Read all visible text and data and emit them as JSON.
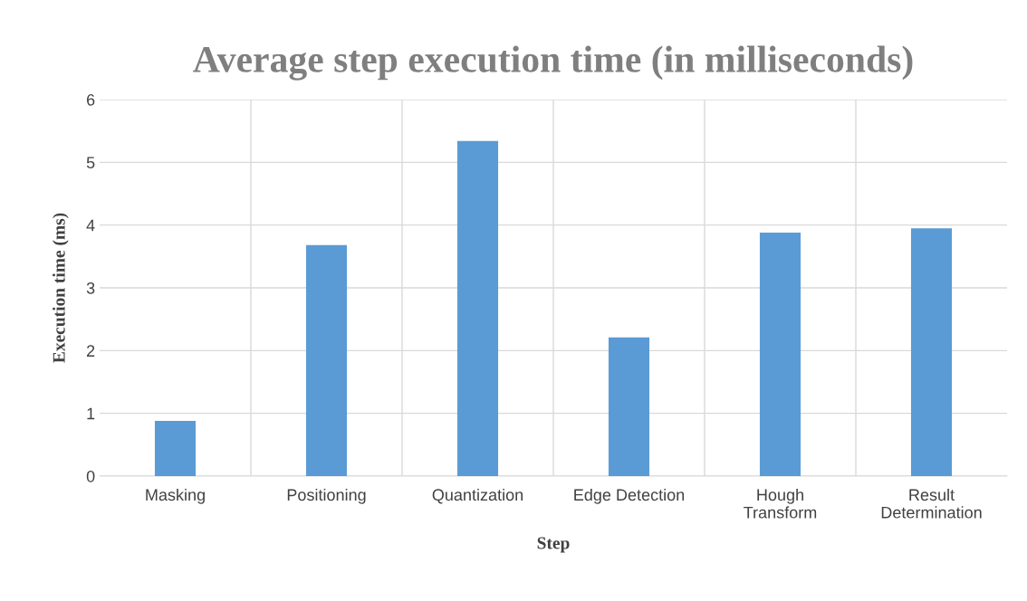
{
  "chart_data": {
    "type": "bar",
    "title": "Average step execution time (in milliseconds)",
    "xlabel": "Step",
    "ylabel": "Execution time (ms)",
    "categories": [
      "Masking",
      "Positioning",
      "Quantization",
      "Edge Detection",
      "Hough\nTransform",
      "Result\nDetermination"
    ],
    "values": [
      0.88,
      3.68,
      5.34,
      2.21,
      3.88,
      3.95
    ],
    "color": "#5b9bd5",
    "ylim": [
      0,
      6
    ],
    "yticks": [
      0,
      1,
      2,
      3,
      4,
      5,
      6
    ],
    "grid": true
  }
}
